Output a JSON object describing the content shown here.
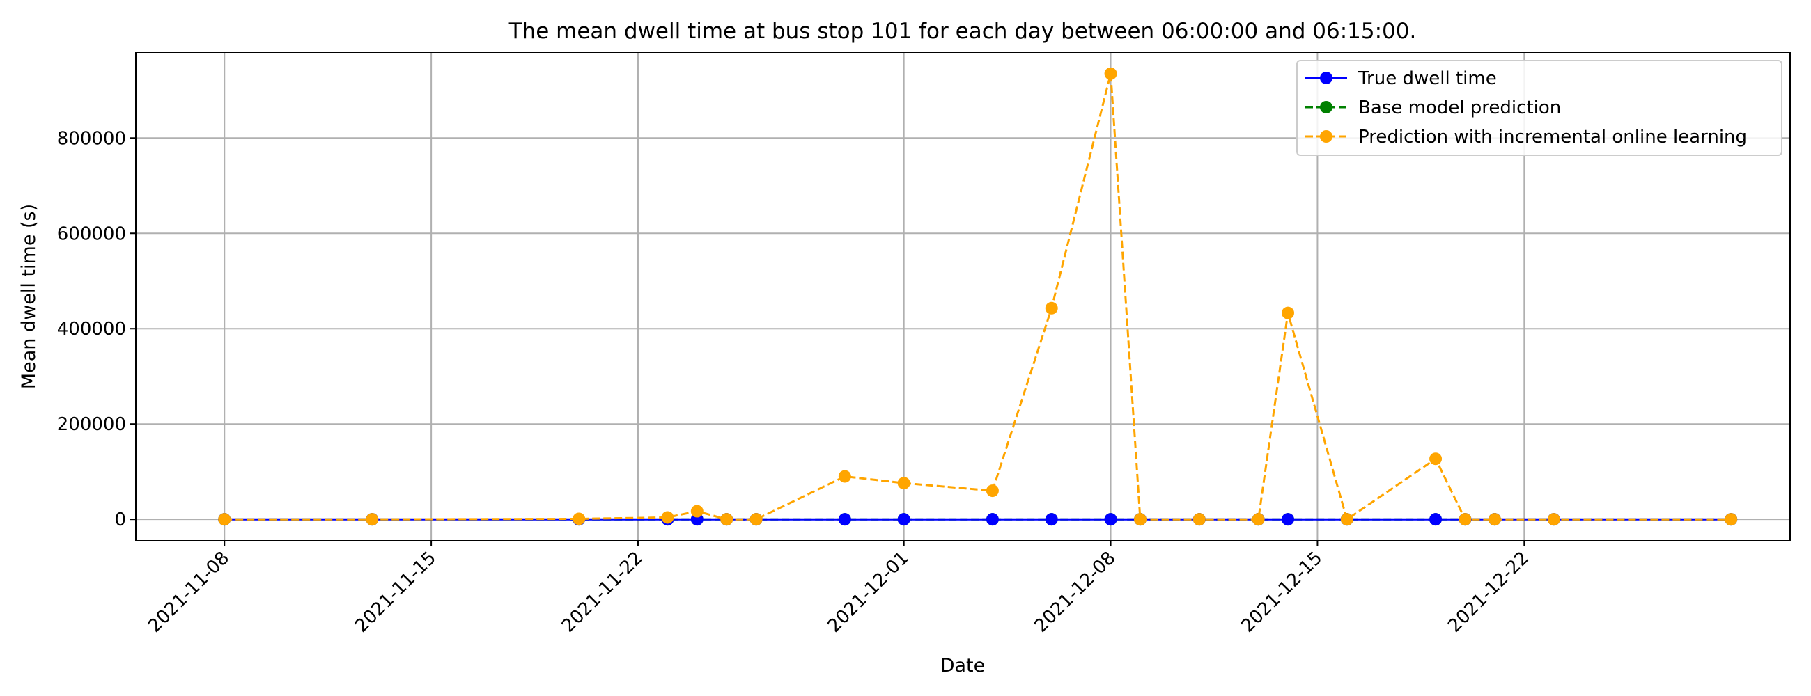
{
  "chart_data": {
    "type": "line",
    "title": "The mean dwell time at bus stop 101 for each day between 06:00:00 and 06:15:00.",
    "xlabel": "Date",
    "ylabel": "Mean dwell time (s)",
    "x_type": "date",
    "xlim": [
      "2021-11-05",
      "2021-12-31"
    ],
    "ylim": [
      -45000,
      980000
    ],
    "x_ticks": [
      "2021-11-08",
      "2021-11-15",
      "2021-11-22",
      "2021-12-01",
      "2021-12-08",
      "2021-12-15",
      "2021-12-22"
    ],
    "y_ticks": [
      0,
      200000,
      400000,
      600000,
      800000
    ],
    "y_tick_labels": [
      "0",
      "200000",
      "400000",
      "600000",
      "800000"
    ],
    "grid": true,
    "legend_position": "top-right",
    "x": [
      "2021-11-08",
      "2021-11-13",
      "2021-11-20",
      "2021-11-23",
      "2021-11-24",
      "2021-11-25",
      "2021-11-26",
      "2021-11-29",
      "2021-12-01",
      "2021-12-04",
      "2021-12-06",
      "2021-12-08",
      "2021-12-09",
      "2021-12-11",
      "2021-12-13",
      "2021-12-14",
      "2021-12-16",
      "2021-12-19",
      "2021-12-20",
      "2021-12-21",
      "2021-12-23",
      "2021-12-29"
    ],
    "series": [
      {
        "name": "True dwell time",
        "color": "#0000ff",
        "line_style": "solid",
        "values": [
          30,
          40,
          35,
          30,
          35,
          30,
          30,
          35,
          40,
          30,
          35,
          40,
          30,
          30,
          35,
          40,
          30,
          35,
          30,
          30,
          35,
          30
        ]
      },
      {
        "name": "Base model prediction",
        "color": "#008000",
        "line_style": "dashed",
        "values": [
          40,
          40,
          40,
          40,
          40,
          40,
          40,
          40,
          40,
          40,
          40,
          40,
          40,
          40,
          40,
          40,
          40,
          40,
          40,
          40,
          40,
          40
        ]
      },
      {
        "name": "Prediction with incremental online learning",
        "color": "#ffa500",
        "line_style": "dashed",
        "values": [
          0,
          0,
          1000,
          4000,
          17000,
          0,
          0,
          90000,
          76000,
          60000,
          443000,
          935000,
          0,
          0,
          0,
          433000,
          0,
          127000,
          0,
          0,
          0,
          0
        ]
      }
    ]
  }
}
